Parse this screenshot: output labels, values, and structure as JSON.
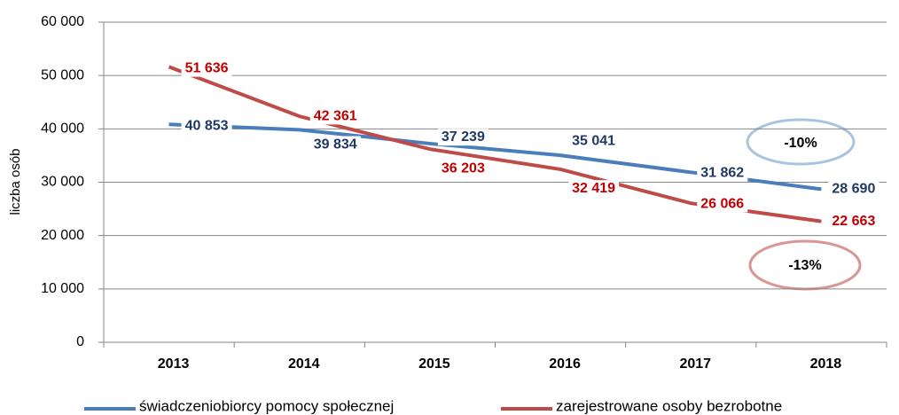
{
  "chart_data": {
    "type": "line",
    "y_axis_label": "liczba osób",
    "categories": [
      "2013",
      "2014",
      "2015",
      "2016",
      "2017",
      "2018"
    ],
    "series": [
      {
        "name": "świadczeniobiorcy pomocy społecznej",
        "color": "#4a7ebb",
        "label_color": "#1f3864",
        "values": [
          40853,
          39834,
          37239,
          35041,
          31862,
          28690
        ],
        "value_labels": [
          "40 853",
          "39 834",
          "37 239",
          "35 041",
          "31 862",
          "28 690"
        ]
      },
      {
        "name": "zarejestrowane osoby bezrobotne",
        "color": "#be4b48",
        "label_color": "#c00000",
        "values": [
          51636,
          42361,
          36203,
          32419,
          26066,
          22663
        ],
        "value_labels": [
          "51 636",
          "42 361",
          "36 203",
          "32 419",
          "26 066",
          "22 663"
        ]
      }
    ],
    "annotations": [
      "-10%",
      "-13%"
    ],
    "ylim": [
      0,
      60000
    ],
    "yticks": [
      0,
      {
        "value": 10000,
        "label": "10 000"
      },
      {
        "value": 20000,
        "label": "20 000"
      },
      {
        "value": 30000,
        "label": "30 000"
      },
      {
        "value": 40000,
        "label": "40 000"
      },
      {
        "value": 50000,
        "label": "50 000"
      },
      {
        "value": 60000,
        "label": "60 000"
      }
    ],
    "grid": true,
    "legend": "bottom"
  }
}
